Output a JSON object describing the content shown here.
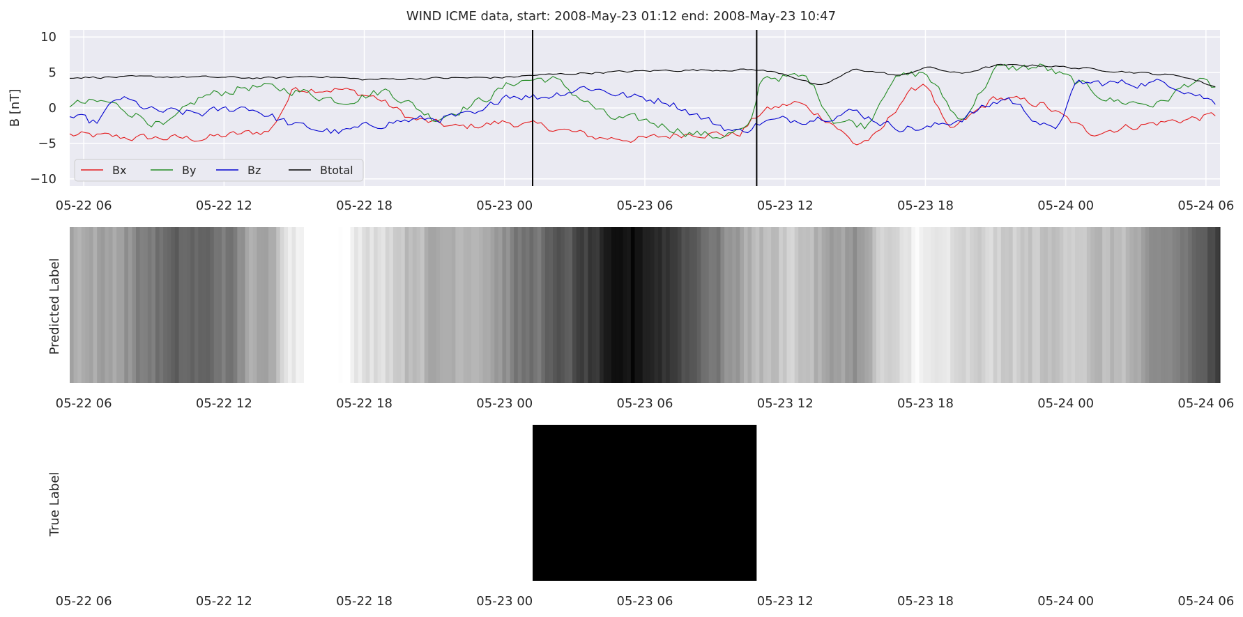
{
  "chart_data": [
    {
      "type": "line",
      "title": "WIND ICME data, start: 2008-May-23 01:12  end: 2008-May-23 10:47",
      "ylabel": "B [nT]",
      "xlabel": "",
      "xlim": [
        "2008-05-22 05:24",
        "2008-05-24 06:36"
      ],
      "ylim": [
        -11,
        11
      ],
      "x_ticks": [
        "05-22 06",
        "05-22 12",
        "05-22 18",
        "05-23 00",
        "05-23 06",
        "05-23 12",
        "05-23 18",
        "05-24 00",
        "05-24 06"
      ],
      "y_ticks": [
        "10",
        "5",
        "0",
        "−5",
        "−10"
      ],
      "grid": true,
      "legend_position": "lower-left",
      "event_lines": [
        "2008-05-23 01:12",
        "2008-05-23 10:47"
      ],
      "sample_interval_minutes": 10,
      "x": {
        "start": "2008-05-22 05:24",
        "step_minutes": 10,
        "count": 295
      },
      "series": [
        {
          "name": "Bx",
          "color": "#e41a1c",
          "control_points": [
            [
              "2008-05-22 05:24",
              -3.8
            ],
            [
              "2008-05-22 08:00",
              -4.2
            ],
            [
              "2008-05-22 11:00",
              -4.3
            ],
            [
              "2008-05-22 14:00",
              -3.2
            ],
            [
              "2008-05-22 15:00",
              2.8
            ],
            [
              "2008-05-22 17:00",
              2.6
            ],
            [
              "2008-05-22 18:30",
              1.5
            ],
            [
              "2008-05-22 20:00",
              -1.5
            ],
            [
              "2008-05-22 22:00",
              -2.8
            ],
            [
              "2008-05-23 00:00",
              -2.0
            ],
            [
              "2008-05-23 02:00",
              -2.8
            ],
            [
              "2008-05-23 04:00",
              -4.2
            ],
            [
              "2008-05-23 06:00",
              -4.4
            ],
            [
              "2008-05-23 08:00",
              -3.5
            ],
            [
              "2008-05-23 10:00",
              -3.8
            ],
            [
              "2008-05-23 11:00",
              -0.5
            ],
            [
              "2008-05-23 12:30",
              0.8
            ],
            [
              "2008-05-23 14:00",
              -2.0
            ],
            [
              "2008-05-23 15:00",
              -5.2
            ],
            [
              "2008-05-23 16:00",
              -3.8
            ],
            [
              "2008-05-23 17:00",
              1.2
            ],
            [
              "2008-05-23 18:00",
              3.8
            ],
            [
              "2008-05-23 19:00",
              -3.5
            ],
            [
              "2008-05-23 21:00",
              1.5
            ],
            [
              "2008-05-23 23:00",
              0.5
            ],
            [
              "2008-05-24 01:00",
              -3.5
            ],
            [
              "2008-05-24 03:00",
              -2.5
            ],
            [
              "2008-05-24 06:36",
              -1.0
            ]
          ]
        },
        {
          "name": "By",
          "color": "#228b22",
          "control_points": [
            [
              "2008-05-22 05:24",
              0.5
            ],
            [
              "2008-05-22 07:00",
              0.8
            ],
            [
              "2008-05-22 08:00",
              -0.5
            ],
            [
              "2008-05-22 09:30",
              -2.8
            ],
            [
              "2008-05-22 11:00",
              1.5
            ],
            [
              "2008-05-22 13:00",
              3.0
            ],
            [
              "2008-05-22 15:00",
              2.5
            ],
            [
              "2008-05-22 17:00",
              1.0
            ],
            [
              "2008-05-22 19:00",
              2.5
            ],
            [
              "2008-05-22 21:00",
              -1.5
            ],
            [
              "2008-05-22 23:00",
              1.0
            ],
            [
              "2008-05-23 00:30",
              3.8
            ],
            [
              "2008-05-23 02:00",
              4.2
            ],
            [
              "2008-05-23 03:00",
              2.0
            ],
            [
              "2008-05-23 04:30",
              -1.5
            ],
            [
              "2008-05-23 06:00",
              -1.8
            ],
            [
              "2008-05-23 08:00",
              -3.5
            ],
            [
              "2008-05-23 09:00",
              -4.0
            ],
            [
              "2008-05-23 10:30",
              -3.0
            ],
            [
              "2008-05-23 11:00",
              4.5
            ],
            [
              "2008-05-23 13:00",
              4.2
            ],
            [
              "2008-05-23 14:00",
              -1.5
            ],
            [
              "2008-05-23 15:30",
              -2.5
            ],
            [
              "2008-05-23 16:30",
              4.0
            ],
            [
              "2008-05-23 18:00",
              5.0
            ],
            [
              "2008-05-23 19:30",
              -2.0
            ],
            [
              "2008-05-23 21:00",
              5.5
            ],
            [
              "2008-05-23 23:00",
              5.8
            ],
            [
              "2008-05-24 00:30",
              3.5
            ],
            [
              "2008-05-24 02:00",
              1.0
            ],
            [
              "2008-05-24 04:00",
              0.5
            ],
            [
              "2008-05-24 05:30",
              4.0
            ],
            [
              "2008-05-24 06:36",
              2.5
            ]
          ]
        },
        {
          "name": "Bz",
          "color": "#0000d0",
          "control_points": [
            [
              "2008-05-22 05:24",
              -1.2
            ],
            [
              "2008-05-22 06:30",
              -2.2
            ],
            [
              "2008-05-22 07:30",
              1.5
            ],
            [
              "2008-05-22 09:00",
              -0.5
            ],
            [
              "2008-05-22 11:00",
              -0.8
            ],
            [
              "2008-05-22 13:00",
              0.2
            ],
            [
              "2008-05-22 15:00",
              -2.5
            ],
            [
              "2008-05-22 17:00",
              -3.5
            ],
            [
              "2008-05-22 19:00",
              -2.0
            ],
            [
              "2008-05-22 21:00",
              -1.5
            ],
            [
              "2008-05-22 23:00",
              -1.0
            ],
            [
              "2008-05-23 00:00",
              2.0
            ],
            [
              "2008-05-23 01:30",
              1.5
            ],
            [
              "2008-05-23 03:30",
              3.0
            ],
            [
              "2008-05-23 05:30",
              1.5
            ],
            [
              "2008-05-23 07:00",
              1.0
            ],
            [
              "2008-05-23 08:30",
              -1.5
            ],
            [
              "2008-05-23 10:00",
              -3.5
            ],
            [
              "2008-05-23 11:00",
              -2.0
            ],
            [
              "2008-05-23 13:00",
              -1.5
            ],
            [
              "2008-05-23 15:00",
              -0.5
            ],
            [
              "2008-05-23 16:30",
              -2.5
            ],
            [
              "2008-05-23 18:00",
              -3.0
            ],
            [
              "2008-05-23 19:30",
              -1.5
            ],
            [
              "2008-05-23 21:30",
              1.5
            ],
            [
              "2008-05-23 23:30",
              -3.5
            ],
            [
              "2008-05-24 00:30",
              3.5
            ],
            [
              "2008-05-24 02:30",
              3.5
            ],
            [
              "2008-05-24 04:30",
              3.5
            ],
            [
              "2008-05-24 06:36",
              0.5
            ]
          ]
        },
        {
          "name": "Btotal",
          "color": "#000000",
          "control_points": [
            [
              "2008-05-22 05:24",
              4.3
            ],
            [
              "2008-05-22 10:00",
              4.4
            ],
            [
              "2008-05-22 14:00",
              4.2
            ],
            [
              "2008-05-22 16:00",
              4.5
            ],
            [
              "2008-05-22 18:00",
              4.0
            ],
            [
              "2008-05-22 21:00",
              4.2
            ],
            [
              "2008-05-23 00:00",
              4.3
            ],
            [
              "2008-05-23 01:12",
              4.6
            ],
            [
              "2008-05-23 04:00",
              5.0
            ],
            [
              "2008-05-23 07:00",
              5.3
            ],
            [
              "2008-05-23 10:47",
              5.4
            ],
            [
              "2008-05-23 12:00",
              4.8
            ],
            [
              "2008-05-23 13:30",
              3.0
            ],
            [
              "2008-05-23 15:00",
              5.5
            ],
            [
              "2008-05-23 17:00",
              4.5
            ],
            [
              "2008-05-23 18:00",
              5.8
            ],
            [
              "2008-05-23 19:30",
              4.8
            ],
            [
              "2008-05-23 21:00",
              6.0
            ],
            [
              "2008-05-23 23:00",
              6.0
            ],
            [
              "2008-05-24 01:00",
              5.5
            ],
            [
              "2008-05-24 03:00",
              5.0
            ],
            [
              "2008-05-24 05:00",
              4.5
            ],
            [
              "2008-05-24 06:36",
              2.8
            ]
          ]
        }
      ]
    },
    {
      "type": "heatmap",
      "ylabel": "Predicted Label",
      "xlim": [
        "2008-05-22 05:24",
        "2008-05-24 06:36"
      ],
      "x_ticks": [
        "05-22 06",
        "05-22 12",
        "05-22 18",
        "05-23 00",
        "05-23 06",
        "05-23 12",
        "05-23 18",
        "05-24 00",
        "05-24 06"
      ],
      "colormap": "white-to-black",
      "value_range": [
        0,
        1
      ],
      "gaps": [
        [
          "2008-05-22 15:24",
          "2008-05-22 16:48"
        ]
      ],
      "control_points": [
        [
          "2008-05-22 05:24",
          0.35
        ],
        [
          "2008-05-22 07:00",
          0.35
        ],
        [
          "2008-05-22 08:00",
          0.45
        ],
        [
          "2008-05-22 09:00",
          0.55
        ],
        [
          "2008-05-22 10:30",
          0.6
        ],
        [
          "2008-05-22 12:00",
          0.55
        ],
        [
          "2008-05-22 13:00",
          0.35
        ],
        [
          "2008-05-22 14:00",
          0.3
        ],
        [
          "2008-05-22 15:00",
          0.1
        ],
        [
          "2008-05-22 15:24",
          0.05
        ],
        [
          "2008-05-22 16:48",
          0.05
        ],
        [
          "2008-05-22 18:00",
          0.1
        ],
        [
          "2008-05-22 20:00",
          0.3
        ],
        [
          "2008-05-22 23:00",
          0.35
        ],
        [
          "2008-05-23 01:00",
          0.55
        ],
        [
          "2008-05-23 02:00",
          0.6
        ],
        [
          "2008-05-23 03:00",
          0.7
        ],
        [
          "2008-05-23 04:00",
          0.8
        ],
        [
          "2008-05-23 05:30",
          0.95
        ],
        [
          "2008-05-23 07:00",
          0.8
        ],
        [
          "2008-05-23 08:30",
          0.6
        ],
        [
          "2008-05-23 10:00",
          0.35
        ],
        [
          "2008-05-23 12:00",
          0.2
        ],
        [
          "2008-05-23 14:00",
          0.35
        ],
        [
          "2008-05-23 15:00",
          0.45
        ],
        [
          "2008-05-23 16:00",
          0.15
        ],
        [
          "2008-05-23 18:00",
          0.05
        ],
        [
          "2008-05-23 20:00",
          0.15
        ],
        [
          "2008-05-23 22:00",
          0.2
        ],
        [
          "2008-05-24 00:00",
          0.25
        ],
        [
          "2008-05-24 02:00",
          0.25
        ],
        [
          "2008-05-24 04:00",
          0.4
        ],
        [
          "2008-05-24 05:30",
          0.6
        ],
        [
          "2008-05-24 06:36",
          0.75
        ]
      ]
    },
    {
      "type": "heatmap",
      "ylabel": "True Label",
      "xlim": [
        "2008-05-22 05:24",
        "2008-05-24 06:36"
      ],
      "x_ticks": [
        "05-22 06",
        "05-22 12",
        "05-22 18",
        "05-23 00",
        "05-23 06",
        "05-23 12",
        "05-23 18",
        "05-24 00",
        "05-24 06"
      ],
      "colormap": "white-to-black",
      "value_range": [
        0,
        1
      ],
      "segments": [
        {
          "start": "2008-05-22 05:24",
          "end": "2008-05-23 01:12",
          "value": 0
        },
        {
          "start": "2008-05-23 01:12",
          "end": "2008-05-23 10:47",
          "value": 1
        },
        {
          "start": "2008-05-23 10:47",
          "end": "2008-05-24 06:36",
          "value": 0
        }
      ]
    }
  ]
}
